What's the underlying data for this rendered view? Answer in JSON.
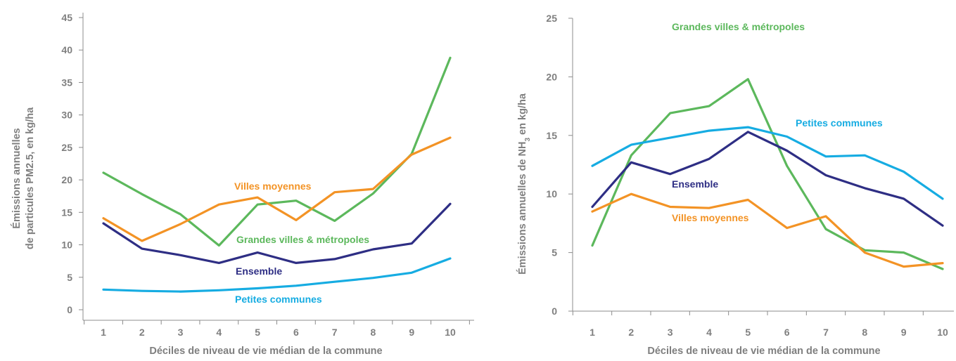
{
  "chart_data": [
    {
      "type": "line",
      "xlabel": "Déciles de niveau de vie médian de la commune",
      "ylabel_lines": [
        "Émissions annuelles",
        "de particules PM2.5, en kg/ha"
      ],
      "categories": [
        "1",
        "2",
        "3",
        "4",
        "5",
        "6",
        "7",
        "8",
        "9",
        "10"
      ],
      "yticks": [
        "0",
        "5",
        "10",
        "15",
        "20",
        "25",
        "30",
        "35",
        "40",
        "45"
      ],
      "ylim": [
        0,
        45
      ],
      "grid": false,
      "series": [
        {
          "name": "Grandes villes & métropoles",
          "color": "#5cb85c",
          "values": [
            21.1,
            17.8,
            14.7,
            9.9,
            16.2,
            16.8,
            13.7,
            17.9,
            24.0,
            38.8
          ]
        },
        {
          "name": "Villes moyennes",
          "color": "#f39325",
          "values": [
            14.1,
            10.6,
            13.2,
            16.2,
            17.3,
            13.8,
            18.1,
            18.6,
            23.9,
            26.5
          ]
        },
        {
          "name": "Ensemble",
          "color": "#2e2e84",
          "values": [
            13.3,
            9.4,
            8.4,
            7.2,
            8.8,
            7.2,
            7.8,
            9.3,
            10.2,
            16.3
          ]
        },
        {
          "name": "Petites communes",
          "color": "#16ace2",
          "values": [
            3.1,
            2.9,
            2.8,
            3.0,
            3.3,
            3.7,
            4.3,
            4.9,
            5.7,
            7.9
          ]
        }
      ]
    },
    {
      "type": "line",
      "xlabel": "Déciles de niveau de vie médian de la commune",
      "ylabel_main": "Émissions annuelles de NH",
      "ylabel_sub": "3",
      "ylabel_end": " en kg/ha",
      "categories": [
        "1",
        "2",
        "3",
        "4",
        "5",
        "6",
        "7",
        "8",
        "9",
        "10"
      ],
      "yticks": [
        "0",
        "5",
        "10",
        "15",
        "20",
        "25"
      ],
      "ylim": [
        0,
        25
      ],
      "grid": false,
      "series": [
        {
          "name": "Grandes villes & métropoles",
          "color": "#5cb85c",
          "values": [
            5.6,
            13.3,
            16.9,
            17.5,
            19.8,
            12.4,
            7.0,
            5.2,
            5.0,
            3.6
          ]
        },
        {
          "name": "Petites communes",
          "color": "#16ace2",
          "values": [
            12.4,
            14.2,
            14.8,
            15.4,
            15.7,
            14.9,
            13.2,
            13.3,
            11.9,
            9.6
          ]
        },
        {
          "name": "Ensemble",
          "color": "#2e2e84",
          "values": [
            8.9,
            12.7,
            11.7,
            13.0,
            15.3,
            13.7,
            11.6,
            10.5,
            9.6,
            7.3
          ]
        },
        {
          "name": "Villes moyennes",
          "color": "#f39325",
          "values": [
            8.5,
            10.0,
            8.9,
            8.8,
            9.5,
            7.1,
            8.1,
            5.0,
            3.8,
            4.1
          ]
        }
      ]
    }
  ]
}
